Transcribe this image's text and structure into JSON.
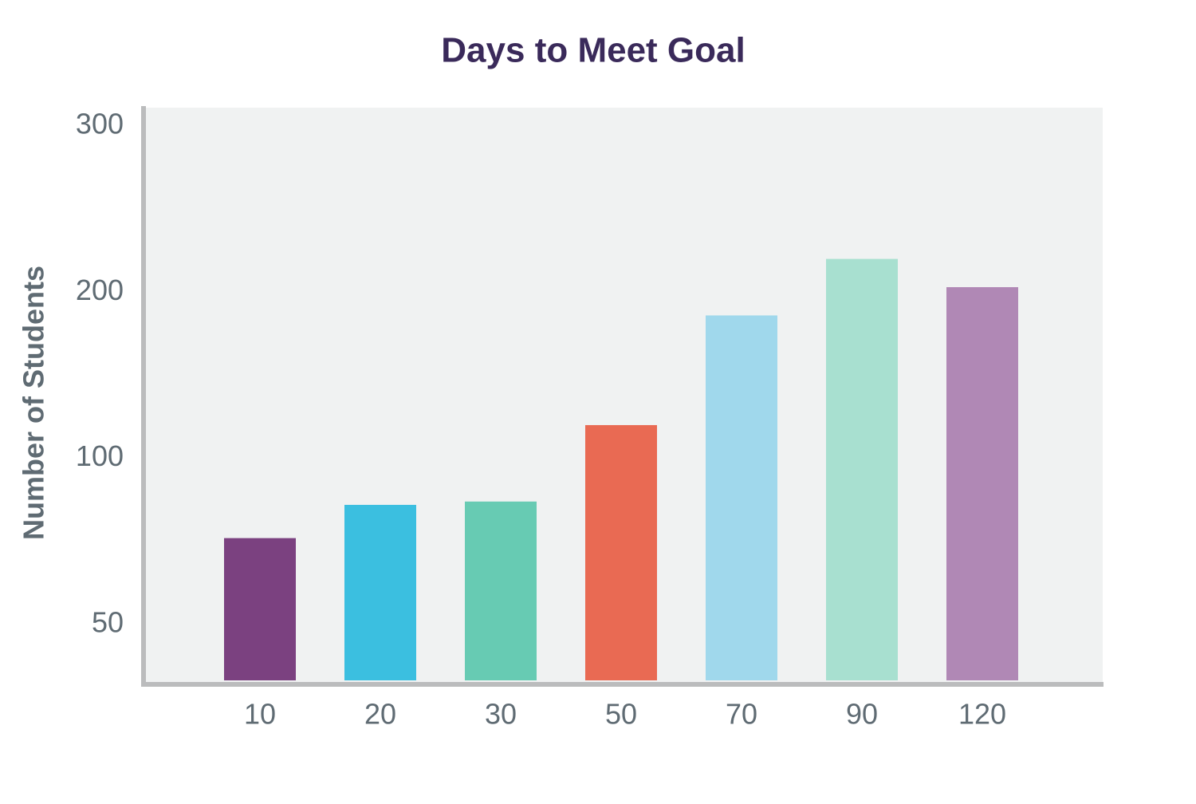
{
  "chart_data": {
    "type": "bar",
    "title": "Days to Meet Goal",
    "y_label": "Number of Students",
    "categories": [
      "10",
      "20",
      "30",
      "50",
      "70",
      "90",
      "120"
    ],
    "values": [
      76,
      86,
      87,
      120,
      186,
      220,
      203
    ],
    "colors": [
      "#7b4180",
      "#3bbfe0",
      "#67cbb3",
      "#e96a53",
      "#a0d8ec",
      "#a8e0d0",
      "#b088b5"
    ],
    "ylim": [
      32,
      311
    ],
    "yticks": [
      50,
      100,
      200,
      300
    ]
  }
}
